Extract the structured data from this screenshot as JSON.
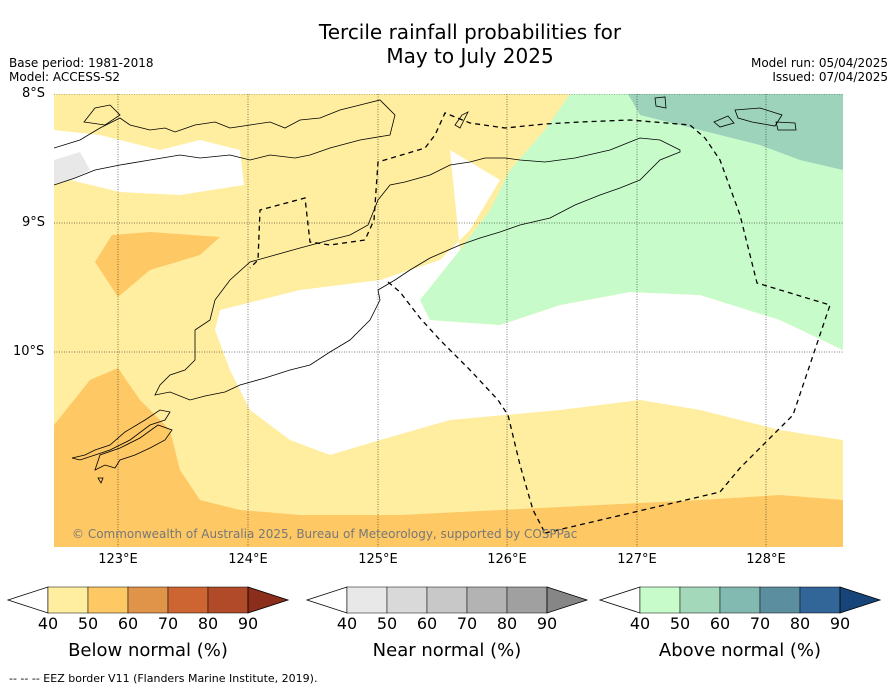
{
  "header": {
    "title_line1": "Tercile rainfall probabilities for",
    "title_line2": "May to July 2025",
    "base_period": "Base period: 1981-2018",
    "model": "Model: ACCESS-S2",
    "model_run": "Model run: 05/04/2025",
    "issued": "Issued: 07/04/2025"
  },
  "map": {
    "latitude_labels": [
      "8°S",
      "9°S",
      "10°S"
    ],
    "longitude_labels": [
      "123°E",
      "124°E",
      "125°E",
      "126°E",
      "127°E",
      "128°E"
    ],
    "copyright": "© Commonwealth of Australia 2025, Bureau of Meteorology, supported by COSPPac",
    "colors": {
      "below_50": "#ffeda0",
      "below_60": "#fec965",
      "near_50": "#e8e8e8",
      "above_50": "#c7fcca",
      "above_60": "#9dd2bb",
      "white": "#ffffff"
    }
  },
  "colorbars": [
    {
      "title": "Below normal (%)",
      "ticks": [
        "40",
        "50",
        "60",
        "70",
        "80",
        "90"
      ],
      "colors": [
        "#ffeda0",
        "#fec965",
        "#e0944a",
        "#cc6532",
        "#b04a28",
        "#8b2f1c"
      ]
    },
    {
      "title": "Near normal (%)",
      "ticks": [
        "40",
        "50",
        "60",
        "70",
        "80",
        "90"
      ],
      "colors": [
        "#e8e8e8",
        "#d9d9d9",
        "#c8c8c8",
        "#b3b3b3",
        "#a0a0a0",
        "#868686"
      ]
    },
    {
      "title": "Above normal (%)",
      "ticks": [
        "40",
        "50",
        "60",
        "70",
        "80",
        "90"
      ],
      "colors": [
        "#c7fcca",
        "#a3d8bb",
        "#82b9b0",
        "#5b8fa0",
        "#326698",
        "#17457a"
      ]
    }
  ],
  "footer": {
    "legend_text": "--  --  -- EEZ border V11 (Flanders Marine Institute, 2019)."
  }
}
